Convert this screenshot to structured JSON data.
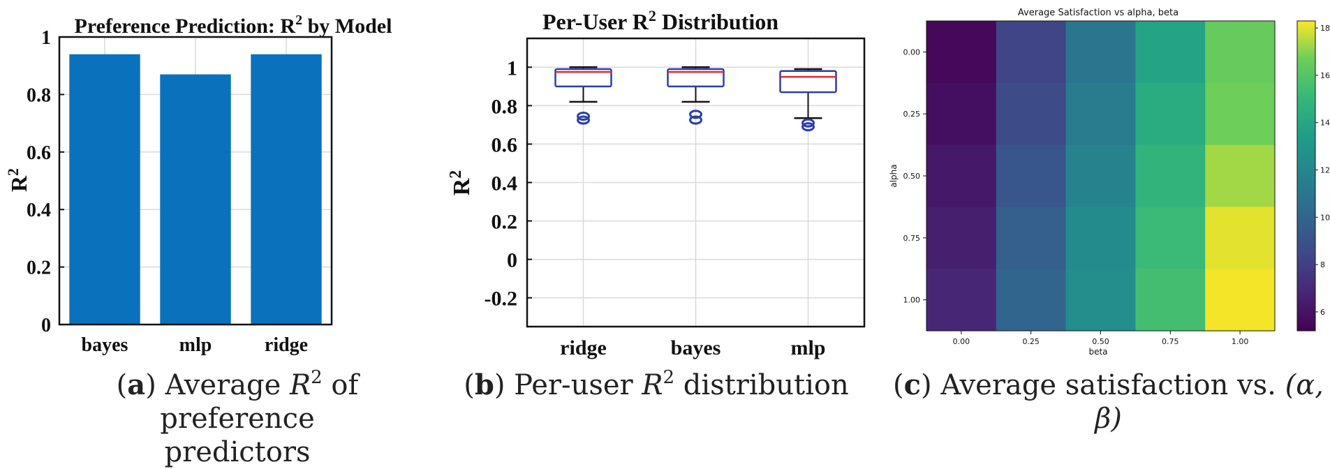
{
  "panels": [
    {
      "id": "a",
      "caption": {
        "letter": "a",
        "text_before": "Average",
        "math_symbol": "R",
        "math_sup": "2",
        "text_after": "of preference",
        "line2": "predictors"
      }
    },
    {
      "id": "b",
      "caption": {
        "letter": "b",
        "text_before": "Per-user",
        "math_symbol": "R",
        "math_sup": "2",
        "text_after": "distribution"
      }
    },
    {
      "id": "c",
      "caption": {
        "letter": "c",
        "text": "Average satisfaction vs.",
        "math": "(α, β)"
      }
    }
  ],
  "chart_data": [
    {
      "type": "bar",
      "title_main": "Preference Prediction: R",
      "title_sup": "2",
      "title_rest": " by Model",
      "ylabel_main": "R",
      "ylabel_sup": "2",
      "xlabel": "",
      "categories": [
        "bayes",
        "mlp",
        "ridge"
      ],
      "values": [
        0.94,
        0.87,
        0.94
      ],
      "ylim": [
        0,
        1
      ],
      "yticks": [
        0,
        0.2,
        0.4,
        0.6,
        0.8,
        1
      ],
      "ytick_labels": [
        "0",
        "0.2",
        "0.4",
        "0.6",
        "0.8",
        "1"
      ],
      "grid": true,
      "bar_color": "#0a72bd"
    },
    {
      "type": "box",
      "title_main": "Per-User R",
      "title_sup": "2",
      "title_rest": " Distribution",
      "ylabel_main": "R",
      "ylabel_sup": "2",
      "categories": [
        "ridge",
        "bayes",
        "mlp"
      ],
      "boxes": [
        {
          "whisker_low": 0.82,
          "q1": 0.9,
          "median": 0.975,
          "q3": 0.99,
          "whisker_high": 1.0,
          "outliers": [
            0.745,
            0.725
          ]
        },
        {
          "whisker_low": 0.82,
          "q1": 0.9,
          "median": 0.975,
          "q3": 0.99,
          "whisker_high": 1.0,
          "outliers": [
            0.755,
            0.725
          ]
        },
        {
          "whisker_low": 0.735,
          "q1": 0.87,
          "median": 0.95,
          "q3": 0.98,
          "whisker_high": 0.99,
          "outliers": [
            0.71,
            0.69
          ]
        }
      ],
      "ylim": [
        -0.35,
        1.15
      ],
      "yticks": [
        -0.2,
        0,
        0.2,
        0.4,
        0.6,
        0.8,
        1
      ],
      "ytick_labels": [
        "-0.2",
        "0",
        "0.2",
        "0.4",
        "0.6",
        "0.8",
        "1"
      ],
      "grid": true,
      "box_color": "#2a3fa8",
      "median_color": "#e8262a"
    },
    {
      "type": "heatmap",
      "title": "Average Satisfaction vs alpha, beta",
      "xlabel": "beta",
      "ylabel": "alpha",
      "x": [
        "0.00",
        "0.25",
        "0.50",
        "0.75",
        "1.00"
      ],
      "y": [
        "0.00",
        "0.25",
        "0.50",
        "0.75",
        "1.00"
      ],
      "values": [
        [
          5.5,
          8.3,
          11.0,
          13.8,
          16.5
        ],
        [
          5.8,
          8.6,
          11.3,
          14.3,
          16.7
        ],
        [
          6.2,
          9.2,
          11.8,
          14.8,
          17.3
        ],
        [
          6.5,
          9.7,
          12.3,
          15.2,
          18.0
        ],
        [
          6.8,
          10.0,
          12.5,
          15.5,
          18.2
        ]
      ],
      "colorbar_range": [
        5.2,
        18.3
      ],
      "colorbar_ticks": [
        6,
        8,
        10,
        12,
        14,
        16,
        18
      ],
      "colormap": "viridis"
    }
  ]
}
